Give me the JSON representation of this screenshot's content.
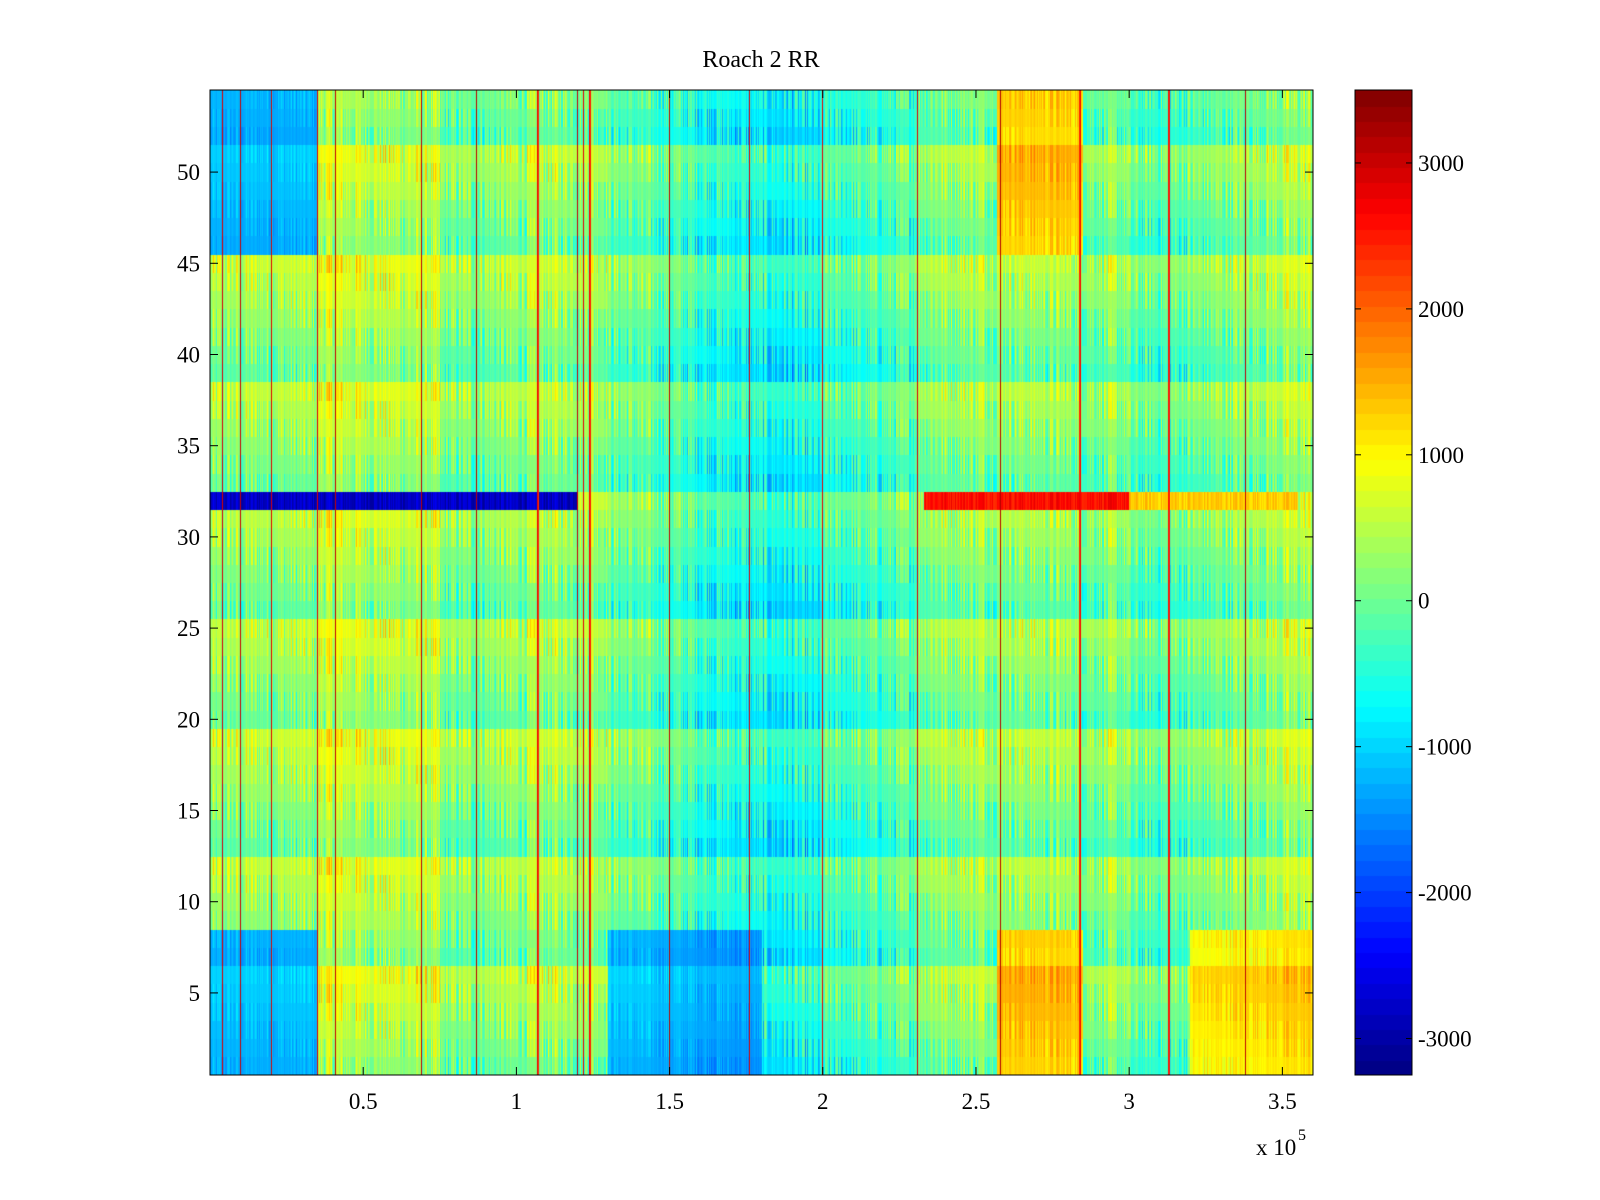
{
  "chart_data": {
    "type": "heatmap",
    "title": "Roach 2 RR",
    "xlabel": "",
    "ylabel": "",
    "x_multiplier_label": "x 10",
    "x_multiplier_exponent": "5",
    "xlim": [
      0,
      3.6
    ],
    "ylim": [
      0.5,
      54.5
    ],
    "x_ticks": [
      0.5,
      1,
      1.5,
      2,
      2.5,
      3,
      3.5
    ],
    "x_tick_labels": [
      "0.5",
      "1",
      "1.5",
      "2",
      "2.5",
      "3",
      "3.5"
    ],
    "y_ticks": [
      5,
      10,
      15,
      20,
      25,
      30,
      35,
      40,
      45,
      50
    ],
    "y_tick_labels": [
      "5",
      "10",
      "15",
      "20",
      "25",
      "30",
      "35",
      "40",
      "45",
      "50"
    ],
    "colorbar": {
      "colormap": "jet",
      "clim": [
        -3250,
        3500
      ],
      "ticks": [
        -3000,
        -2000,
        -1000,
        0,
        1000,
        2000,
        3000
      ],
      "tick_labels": [
        "-3000",
        "-2000",
        "-1000",
        "0",
        "1000",
        "2000",
        "3000"
      ]
    },
    "rows": 54,
    "x_range_units": [
      0,
      360000
    ],
    "features": {
      "vertical_high_stripes_x": [
        0.04,
        0.1,
        0.2,
        0.35,
        0.41,
        0.69,
        0.87,
        1.07,
        1.2,
        1.22,
        1.24,
        1.5,
        1.76,
        2.0,
        2.31,
        2.58,
        2.84,
        3.13,
        3.38
      ],
      "high_band_row_32": {
        "row": 32,
        "x_from": 2.33,
        "x_to": 3.55,
        "value": 2600
      },
      "low_band_row_32": {
        "row": 32,
        "x_from": 0.0,
        "x_to": 1.2,
        "value": -2800
      },
      "low_regions": [
        {
          "rows": [
            1,
            8
          ],
          "x_from": 0.0,
          "x_to": 0.35,
          "value": -1800
        },
        {
          "rows": [
            46,
            54
          ],
          "x_from": 0.0,
          "x_to": 0.35,
          "value": -1800
        },
        {
          "rows": [
            1,
            8
          ],
          "x_from": 1.3,
          "x_to": 1.8,
          "value": -1600
        }
      ],
      "high_regions": [
        {
          "rows": [
            1,
            8
          ],
          "x_from": 2.57,
          "x_to": 2.85,
          "value": 1800
        },
        {
          "rows": [
            46,
            54
          ],
          "x_from": 2.57,
          "x_to": 2.85,
          "value": 1800
        },
        {
          "rows": [
            1,
            8
          ],
          "x_from": 3.2,
          "x_to": 3.6,
          "value": 1500
        }
      ]
    }
  }
}
